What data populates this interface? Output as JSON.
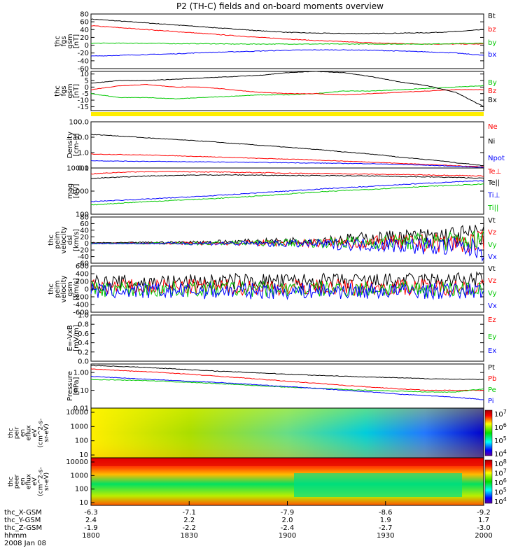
{
  "chart_data": {
    "type": "line",
    "title": "P2 (TH-C) fields and on-board moments overview",
    "panels": [
      {
        "id": "fgs_gsm",
        "ylabel": [
          "thc",
          "fgs",
          "gsm",
          "[nT]"
        ],
        "yticks": [
          "80",
          "60",
          "40",
          "20",
          "0",
          "-20",
          "-40",
          "-60"
        ],
        "ylim": [
          -60,
          80
        ],
        "series": [
          {
            "name": "Bt",
            "color": "#000000",
            "values": [
              67,
              62,
              57,
              52,
              47,
              42,
              37,
              33,
              31,
              30,
              30,
              31,
              32,
              35,
              40
            ]
          },
          {
            "name": "bz",
            "color": "#ff0000",
            "values": [
              50,
              45,
              40,
              35,
              30,
              25,
              20,
              16,
              12,
              9,
              6,
              4,
              3,
              3,
              3
            ]
          },
          {
            "name": "by",
            "color": "#00c800",
            "values": [
              5,
              5,
              5,
              4,
              4,
              3,
              3,
              3,
              3,
              3,
              3,
              3,
              3,
              4,
              5
            ]
          },
          {
            "name": "bx",
            "color": "#0000ff",
            "values": [
              -28,
              -26,
              -24,
              -22,
              -19,
              -17,
              -15,
              -13,
              -12,
              -12,
              -13,
              -15,
              -17,
              -20,
              -26
            ]
          }
        ]
      },
      {
        "id": "fgs_gsm_comps",
        "ylabel": [
          "thc",
          "fgs",
          "gsm",
          "[nT]"
        ],
        "yticks": [
          "10",
          "5",
          "0",
          "-5",
          "-10",
          "-15"
        ],
        "ylim": [
          -18,
          12
        ],
        "series": [
          {
            "name": "By",
            "color": "#00c800",
            "values": [
              -5,
              -8,
              -8,
              -9,
              -8,
              -7,
              -6,
              -6,
              -5,
              -3,
              -3,
              -2,
              -1,
              0,
              1
            ]
          },
          {
            "name": "Bz",
            "color": "#ff0000",
            "values": [
              -2,
              1,
              2,
              0,
              0,
              -2,
              -4,
              -5,
              -5,
              -6,
              -5,
              -4,
              -3,
              -2,
              -2
            ]
          },
          {
            "name": "Bx",
            "color": "#000000",
            "values": [
              3,
              5,
              5,
              6,
              7,
              8,
              9,
              11,
              12,
              11,
              8,
              4,
              1,
              -4,
              -15
            ]
          }
        ]
      },
      {
        "id": "density",
        "ylabel": [
          "Density",
          "[cm-3]"
        ],
        "yticks": [
          "100.0",
          "10.0",
          "1.0",
          "0.1"
        ],
        "yscale": "log",
        "ylim": [
          0.1,
          100
        ],
        "series": [
          {
            "name": "Ne",
            "color": "#ff0000",
            "values": [
              0.8,
              0.75,
              0.7,
              0.62,
              0.55,
              0.48,
              0.42,
              0.38,
              0.33,
              0.28,
              0.24,
              0.2,
              0.17,
              0.14,
              0.12
            ]
          },
          {
            "name": "Ni",
            "color": "#000000",
            "values": [
              15,
              12,
              9,
              7,
              5.5,
              4,
              3,
              2.2,
              1.6,
              1.1,
              0.8,
              0.5,
              0.35,
              0.22,
              0.14
            ]
          },
          {
            "name": "Npot",
            "color": "#0000ff",
            "values": [
              0.3,
              0.28,
              0.27,
              0.26,
              0.25,
              0.24,
              0.23,
              0.22,
              0.21,
              0.2,
              0.19,
              0.17,
              0.15,
              0.13,
              0.11
            ]
          }
        ]
      },
      {
        "id": "temperature",
        "ylabel": [
          "mag",
          "[eV]"
        ],
        "yticks": [
          "10000",
          "1000",
          "100"
        ],
        "yscale": "log",
        "ylim": [
          100,
          10000
        ],
        "series": [
          {
            "name": "Te⊥",
            "color": "#ff0000",
            "values": [
              5500,
              6500,
              7000,
              7000,
              6800,
              6500,
              6300,
              6000,
              5800,
              5600,
              5400,
              5200,
              5000,
              4800,
              4500
            ]
          },
          {
            "name": "Te||",
            "color": "#000000",
            "values": [
              3500,
              4000,
              4500,
              4800,
              5000,
              5000,
              4900,
              4800,
              4700,
              4600,
              4500,
              4300,
              4100,
              3900,
              3600
            ]
          },
          {
            "name": "Ti⊥",
            "color": "#0000ff",
            "values": [
              350,
              400,
              450,
              520,
              600,
              700,
              850,
              1000,
              1200,
              1400,
              1600,
              1900,
              2200,
              2500,
              2800
            ]
          },
          {
            "name": "Ti||",
            "color": "#00c800",
            "values": [
              250,
              300,
              350,
              400,
              450,
              520,
              620,
              750,
              900,
              1050,
              1200,
              1400,
              1600,
              1800,
              2000
            ]
          }
        ]
      },
      {
        "id": "velocity_dsl",
        "ylabel": [
          "thc",
          "peim",
          "velocity",
          "dsl",
          "[km/s]"
        ],
        "yticks": [
          "80",
          "60",
          "40",
          "20",
          "0",
          "-20",
          "-40",
          "-60"
        ],
        "ylim": [
          -60,
          80
        ],
        "noise": [
          0.02,
          0.02,
          0.03,
          0.05,
          0.08,
          0.1,
          0.12,
          0.15,
          0.2,
          0.25,
          0.3,
          0.35,
          0.4,
          0.45,
          0.5
        ],
        "series": [
          {
            "name": "Vt",
            "color": "#000000",
            "values": [
              2,
              2,
              3,
              3,
              4,
              5,
              6,
              8,
              10,
              12,
              15,
              18,
              20,
              24,
              28
            ]
          },
          {
            "name": "Vz",
            "color": "#ff0000",
            "values": [
              0,
              0,
              0,
              0,
              0,
              1,
              1,
              1,
              1,
              2,
              2,
              2,
              2,
              2,
              2
            ]
          },
          {
            "name": "Vy",
            "color": "#00c800",
            "values": [
              0,
              0,
              0,
              0,
              0,
              1,
              1,
              2,
              2,
              3,
              4,
              5,
              6,
              7,
              8
            ]
          },
          {
            "name": "Vx",
            "color": "#0000ff",
            "values": [
              0,
              0,
              0,
              0,
              0,
              0,
              -1,
              -1,
              -2,
              -3,
              -4,
              -5,
              -8,
              -12,
              -20
            ]
          }
        ]
      },
      {
        "id": "velocity_gsm",
        "ylabel": [
          "thc",
          "peim",
          "velocity",
          "gsm",
          "[km/s]"
        ],
        "yticks": [
          "600",
          "400",
          "200",
          "0",
          "-200",
          "-400",
          "-600"
        ],
        "ylim": [
          -600,
          600
        ],
        "noise": [
          0.35,
          0.35,
          0.35,
          0.35,
          0.35,
          0.35,
          0.35,
          0.35,
          0.35,
          0.35,
          0.35,
          0.35,
          0.35,
          0.35,
          0.35
        ],
        "series": [
          {
            "name": "Vt",
            "color": "#000000",
            "values": [
              150,
              160,
              170,
              180,
              190,
              200,
              200,
              200,
              200,
              200,
              200,
              210,
              220,
              230,
              240
            ]
          },
          {
            "name": "Vz",
            "color": "#ff0000",
            "values": [
              50,
              50,
              50,
              50,
              50,
              50,
              50,
              50,
              50,
              50,
              50,
              50,
              50,
              50,
              50
            ]
          },
          {
            "name": "Vy",
            "color": "#00c800",
            "values": [
              0,
              0,
              0,
              0,
              0,
              0,
              0,
              0,
              0,
              0,
              0,
              0,
              0,
              0,
              0
            ]
          },
          {
            "name": "Vx",
            "color": "#0000ff",
            "values": [
              -50,
              -50,
              -50,
              -50,
              -50,
              -50,
              -50,
              -50,
              -50,
              -50,
              -50,
              -50,
              -50,
              -50,
              -50
            ]
          }
        ]
      },
      {
        "id": "efield",
        "ylabel": [
          "E=-VxB",
          "[mV/m]"
        ],
        "yticks": [
          "1.0",
          "0.8",
          "0.6",
          "0.4",
          "0.2",
          "0.0"
        ],
        "ylim": [
          0,
          1
        ],
        "series": [
          {
            "name": "Ez",
            "color": "#ff0000",
            "values": []
          },
          {
            "name": "Ey",
            "color": "#00c800",
            "values": []
          },
          {
            "name": "Ex",
            "color": "#0000ff",
            "values": []
          }
        ]
      },
      {
        "id": "pressure",
        "ylabel": [
          "Pressure",
          "[nPa]"
        ],
        "yticks": [
          "1.00",
          "0.10",
          "0.01"
        ],
        "yscale": "log",
        "ylim": [
          0.01,
          3
        ],
        "series": [
          {
            "name": "Pt",
            "color": "#000000",
            "values": [
              2.5,
              2.2,
              1.9,
              1.6,
              1.3,
              1.1,
              0.95,
              0.8,
              0.7,
              0.62,
              0.55,
              0.5,
              0.45,
              0.42,
              0.4
            ]
          },
          {
            "name": "Pb",
            "color": "#ff0000",
            "values": [
              1.6,
              1.3,
              1.1,
              0.9,
              0.7,
              0.55,
              0.42,
              0.32,
              0.25,
              0.19,
              0.15,
              0.12,
              0.1,
              0.1,
              0.1
            ]
          },
          {
            "name": "Pe",
            "color": "#00c800",
            "values": [
              0.4,
              0.38,
              0.35,
              0.3,
              0.26,
              0.22,
              0.18,
              0.15,
              0.13,
              0.11,
              0.1,
              0.09,
              0.08,
              0.08,
              0.12
            ]
          },
          {
            "name": "Pi",
            "color": "#0000ff",
            "values": [
              0.6,
              0.5,
              0.42,
              0.35,
              0.3,
              0.25,
              0.2,
              0.16,
              0.13,
              0.1,
              0.08,
              0.06,
              0.05,
              0.04,
              0.03
            ]
          }
        ]
      },
      {
        "id": "peir_spec",
        "type": "heatmap",
        "ylabel": [
          "thc",
          "peir",
          "en",
          "eflux",
          "eV",
          "(cm^2-s-",
          "sr-eV)"
        ],
        "yticks": [
          "10000",
          "1000",
          "100",
          "10"
        ],
        "cbar_ticks": [
          "10^7",
          "10^6",
          "10^5",
          "10^4"
        ]
      },
      {
        "id": "peer_spec",
        "type": "heatmap",
        "ylabel": [
          "thc",
          "peer",
          "en",
          "eflux",
          "eV",
          "(cm^2-s-",
          "sr-eV)"
        ],
        "yticks": [
          "10000",
          "1000",
          "100",
          "10"
        ],
        "cbar_ticks": [
          "10^8",
          "10^7",
          "10^6",
          "10^5",
          "10^4"
        ]
      }
    ],
    "xaxis": {
      "row_labels": [
        "thc_X-GSM",
        "thc_Y-GSM",
        "thc_Z-GSM",
        "hhmm",
        "2008 Jan 08"
      ],
      "ticks": [
        {
          "x": "1800",
          "X": "-6.3",
          "Y": "2.4",
          "Z": "-1.9"
        },
        {
          "x": "1830",
          "X": "-7.1",
          "Y": "2.2",
          "Z": "-2.2"
        },
        {
          "x": "1900",
          "X": "-7.9",
          "Y": "2.0",
          "Z": "-2.4"
        },
        {
          "x": "1930",
          "X": "-8.6",
          "Y": "1.9",
          "Z": "-2.7"
        },
        {
          "x": "2000",
          "X": "-9.2",
          "Y": "1.7",
          "Z": "-3.0"
        }
      ]
    }
  }
}
